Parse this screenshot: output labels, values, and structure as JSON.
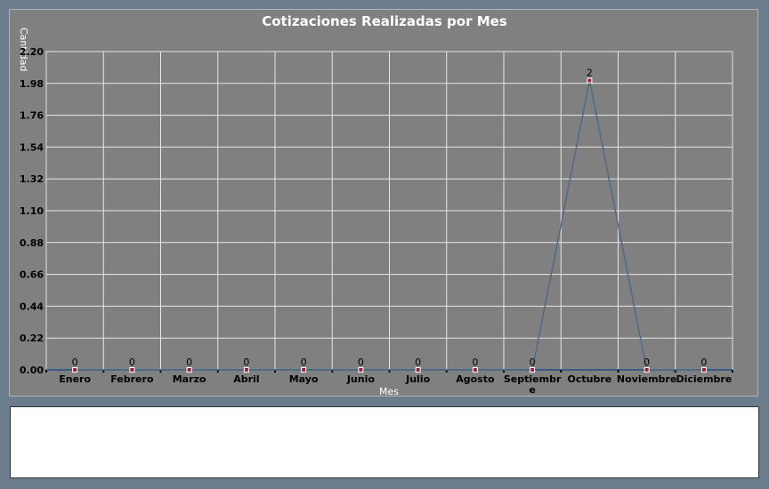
{
  "chart_data": {
    "type": "line",
    "title": "Cotizaciones Realizadas por Mes",
    "xlabel": "Mes",
    "ylabel": "Cantidad",
    "categories": [
      "Enero",
      "Febrero",
      "Marzo",
      "Abril",
      "Mayo",
      "Junio",
      "Julio",
      "Agosto",
      "Septiembre",
      "Octubre",
      "Noviembre",
      "Diciembre"
    ],
    "category_labels": [
      [
        "Enero"
      ],
      [
        "Febrero"
      ],
      [
        "Marzo"
      ],
      [
        "Abril"
      ],
      [
        "Mayo"
      ],
      [
        "Junio"
      ],
      [
        "Julio"
      ],
      [
        "Agosto"
      ],
      [
        "Septiembr",
        "e"
      ],
      [
        "Octubre"
      ],
      [
        "Noviembre"
      ],
      [
        "Diciembre"
      ]
    ],
    "values": [
      0,
      0,
      0,
      0,
      0,
      0,
      0,
      0,
      0,
      2,
      0,
      0
    ],
    "ylim": [
      0,
      2.2
    ],
    "yticks": [
      "0.00",
      "0.22",
      "0.44",
      "0.66",
      "0.88",
      "1.10",
      "1.32",
      "1.54",
      "1.76",
      "1.98",
      "2.20"
    ],
    "grid": true,
    "line_color": "#4f6b85",
    "marker_color": "#a0203a"
  }
}
